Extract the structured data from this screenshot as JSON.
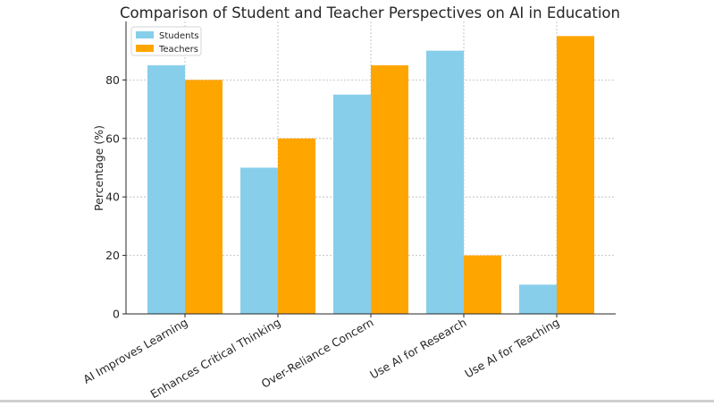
{
  "chart_data": {
    "type": "bar",
    "title": "Comparison of Student and Teacher Perspectives on AI in Education",
    "xlabel": "",
    "ylabel": "Percentage (%)",
    "categories": [
      "AI Improves Learning",
      "Enhances Critical Thinking",
      "Over-Reliance Concern",
      "Use AI for Research",
      "Use AI for Teaching"
    ],
    "series": [
      {
        "name": "Students",
        "color": "#87ceeb",
        "values": [
          85,
          50,
          75,
          90,
          10
        ]
      },
      {
        "name": "Teachers",
        "color": "#ffa500",
        "values": [
          80,
          60,
          85,
          20,
          95
        ]
      }
    ],
    "ylim": [
      0,
      100
    ],
    "yticks": [
      0,
      20,
      40,
      60,
      80
    ],
    "grid": true,
    "legend_position": "top-left"
  }
}
